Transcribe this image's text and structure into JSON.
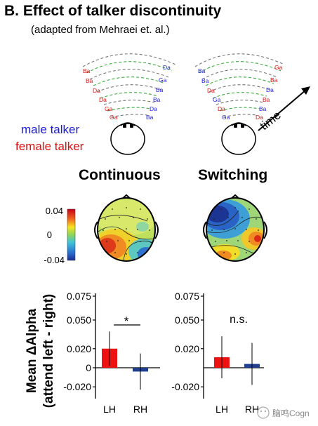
{
  "title": "B. Effect of talker discontinuity",
  "subtitle": "(adapted from Mehraei et. al.)",
  "legend": {
    "male": "male talker",
    "female": "female talker",
    "male_color": "#1a1adc",
    "female_color": "#e01010"
  },
  "schematic": {
    "left_labels": [
      "Ba",
      "Ba",
      "Da",
      "Da",
      "Ga",
      "Ga",
      "Ba",
      "Da",
      "Ba",
      "Ba",
      "Ga",
      "Da"
    ],
    "right_labels": [
      "Ba",
      "Ba",
      "Da",
      "Ga",
      "Da",
      "Ga",
      "Da",
      "Ba",
      "Ba",
      "Da",
      "Ba",
      "Ga"
    ],
    "time_label": "time"
  },
  "conditions": [
    "Continuous",
    "Switching"
  ],
  "colorbar": {
    "ticks": [
      "0.04",
      "0",
      "-0.04"
    ]
  },
  "chart_data": [
    {
      "type": "bar",
      "ylabel_line1": "Mean ΔAlpha",
      "ylabel_line2": "(attend left - right)",
      "categories": [
        "LH",
        "RH"
      ],
      "values": [
        0.02,
        -0.004
      ],
      "errors": [
        0.018,
        0.019
      ],
      "colors": [
        "#ee1111",
        "#1f3f8f"
      ],
      "ylim": [
        -0.03,
        0.075
      ],
      "yticks": [
        0.075,
        0.05,
        0.02,
        0,
        -0.02
      ],
      "ytick_labels": [
        "0.075",
        "0.050",
        "0.020",
        "0",
        "-0.020"
      ],
      "annotation": "*"
    },
    {
      "type": "bar",
      "categories": [
        "LH",
        "RH"
      ],
      "values": [
        0.011,
        0.004
      ],
      "errors": [
        0.022,
        0.022
      ],
      "colors": [
        "#ee1111",
        "#1f3f8f"
      ],
      "ylim": [
        -0.03,
        0.075
      ],
      "yticks": [
        0.075,
        0.05,
        0.02,
        -0.02
      ],
      "ytick_labels": [
        "0.075",
        "0.050",
        "0.020",
        "-0.020"
      ],
      "annotation": "n.s."
    }
  ],
  "watermark": "脑鸣Cogn"
}
